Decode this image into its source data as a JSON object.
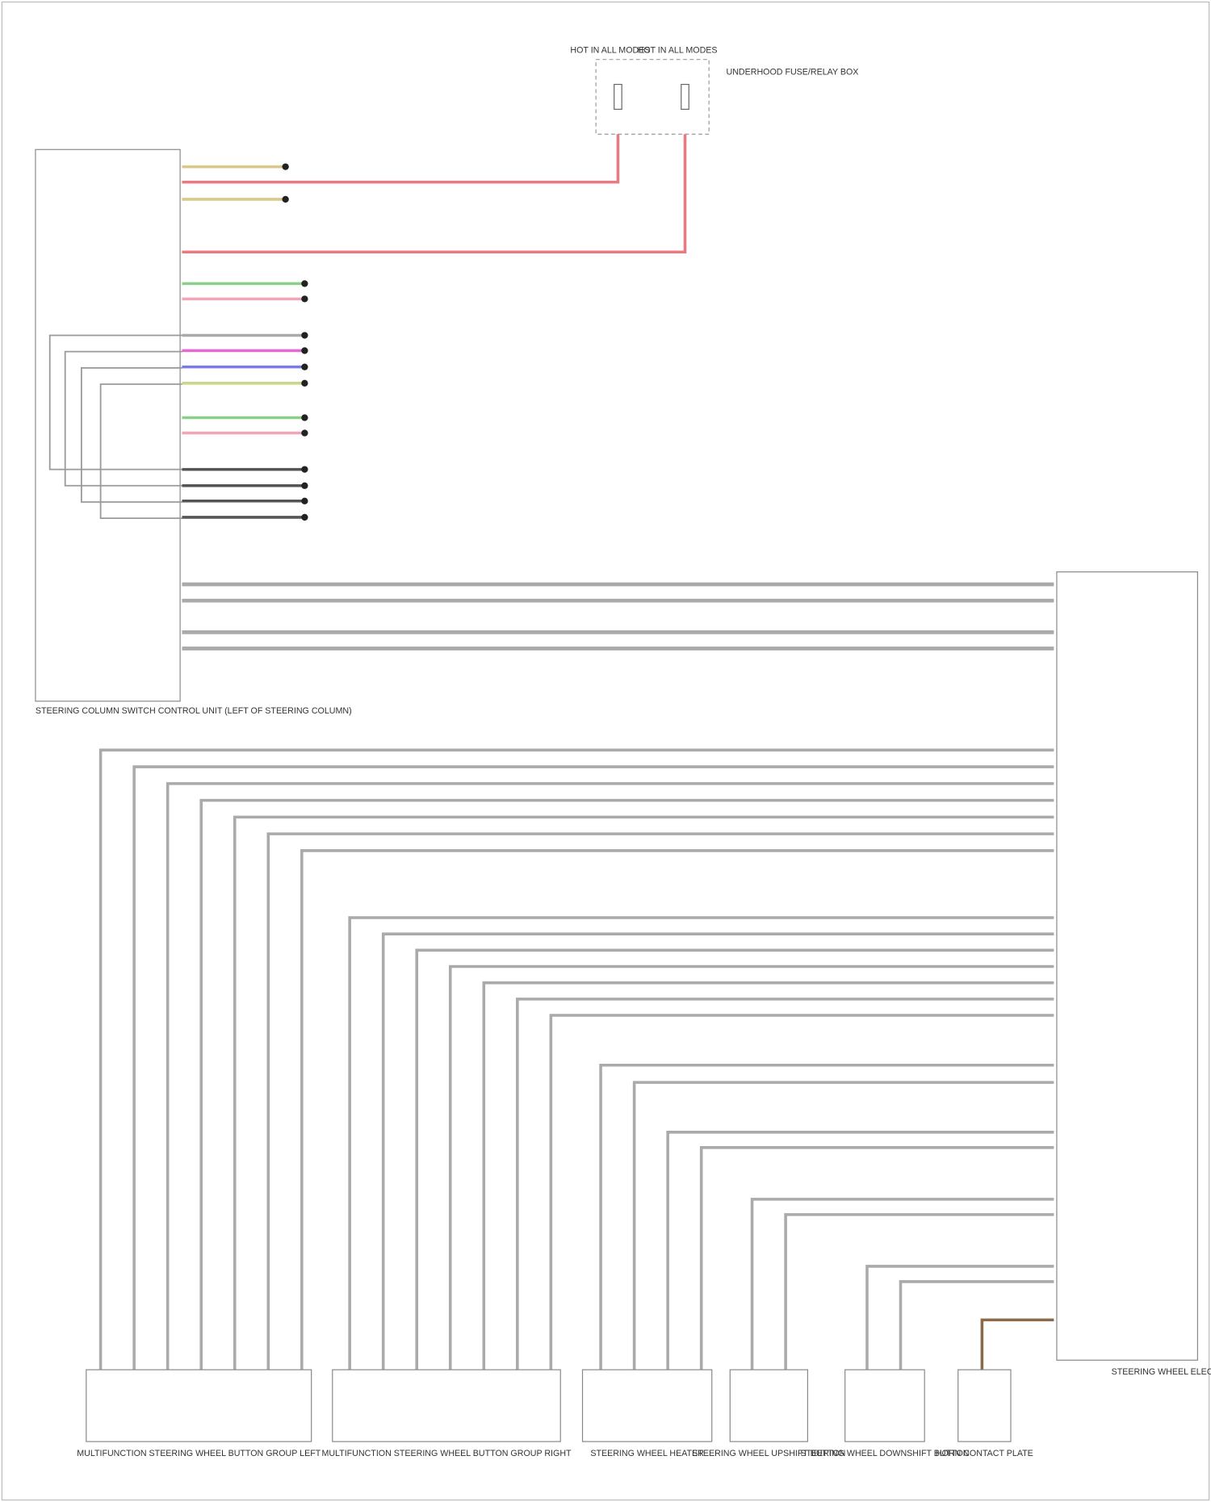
{
  "diagram": {
    "fuses": [
      {
        "label": "HOT IN ALL MODES"
      },
      {
        "label": "HOT IN ALL MODES"
      }
    ],
    "fuse_box": "UNDERHOOD FUSE/RELAY BOX",
    "modules": [
      {
        "label": "STEERING COLUMN SWITCH CONTROL UNIT (LEFT OF STEERING COLUMN)"
      },
      {
        "label": "STEERING WHEEL ELECTRONICS (CENTER OF STEERING WHEEL)"
      }
    ],
    "components": [
      {
        "label": "MULTIFUNCTION STEERING WHEEL BUTTON GROUP LEFT"
      },
      {
        "label": "MULTIFUNCTION STEERING WHEEL BUTTON GROUP RIGHT"
      },
      {
        "label": "STEERING WHEEL HEATER"
      },
      {
        "label": "STEERING WHEEL UPSHIFT BUTTON"
      },
      {
        "label": "STEERING WHEEL DOWNSHIFT BUTTON"
      },
      {
        "label": "HORN CONTACT PLATE"
      }
    ]
  }
}
